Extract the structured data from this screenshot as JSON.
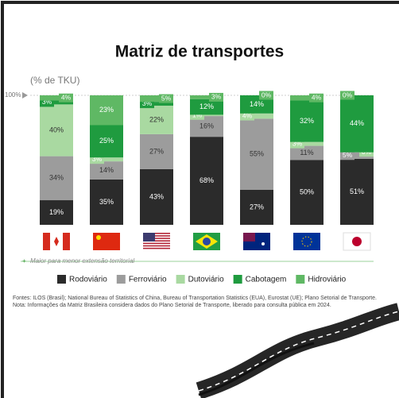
{
  "chart_data": {
    "type": "stacked_bar",
    "title": "Matriz de transportes",
    "y_axis_label": "(% de TKU)",
    "annotation": "Maior para menor extensão territorial",
    "source_note": "Fontes: ILOS (Brasil); National Bureau of Statistics of China, Bureau of Transportation Statistics (EUA), Eurostat (UE); Plano Setorial de Transporte. Nota: Informações da Matriz Brasileira considera dados do Plano Setorial de Transporte, liberado para consulta pública em 2024.",
    "categories": [
      null,
      null,
      null,
      null,
      null,
      null,
      null
    ],
    "ylim": [
      0,
      100
    ],
    "yticks": [
      {
        "value": 100,
        "label": "100%"
      }
    ],
    "legend": "bottom",
    "series": [
      {
        "name": "Rodoviário",
        "color": "#2b2b2b",
        "values": [
          19,
          35,
          43,
          68,
          27,
          50,
          51
        ],
        "value_labels": [
          "19%",
          "35%",
          "43%",
          "68%",
          "27%",
          "50%",
          "51%"
        ]
      },
      {
        "name": "Ferroviário",
        "color": "#9c9c9c",
        "values": [
          34,
          14,
          27,
          16,
          55,
          11,
          5
        ],
        "value_labels": [
          "34%",
          "14%",
          "27%",
          "16%",
          "55%",
          "11%",
          "5%"
        ]
      },
      {
        "name": "Dutoviário",
        "color": "#a9d9a1",
        "values": [
          40,
          3,
          22,
          1,
          4,
          3,
          0
        ],
        "value_labels": [
          "40%",
          "3%",
          "22%",
          "1%",
          "4%",
          "3%",
          "0%"
        ]
      },
      {
        "name": "Cabotagem",
        "color": "#1f9b3f",
        "values": [
          3,
          25,
          3,
          12,
          14,
          32,
          44
        ],
        "value_labels": [
          "3%",
          "25%",
          "3%",
          "12%",
          "14%",
          "32%",
          "44%"
        ]
      },
      {
        "name": "Hidroviário",
        "color": "#5fb864",
        "values": [
          4,
          23,
          5,
          3,
          0,
          4,
          0
        ],
        "value_labels": [
          "4%",
          "23%",
          "5%",
          "3%",
          "0%",
          "4%",
          "0%"
        ]
      }
    ]
  }
}
